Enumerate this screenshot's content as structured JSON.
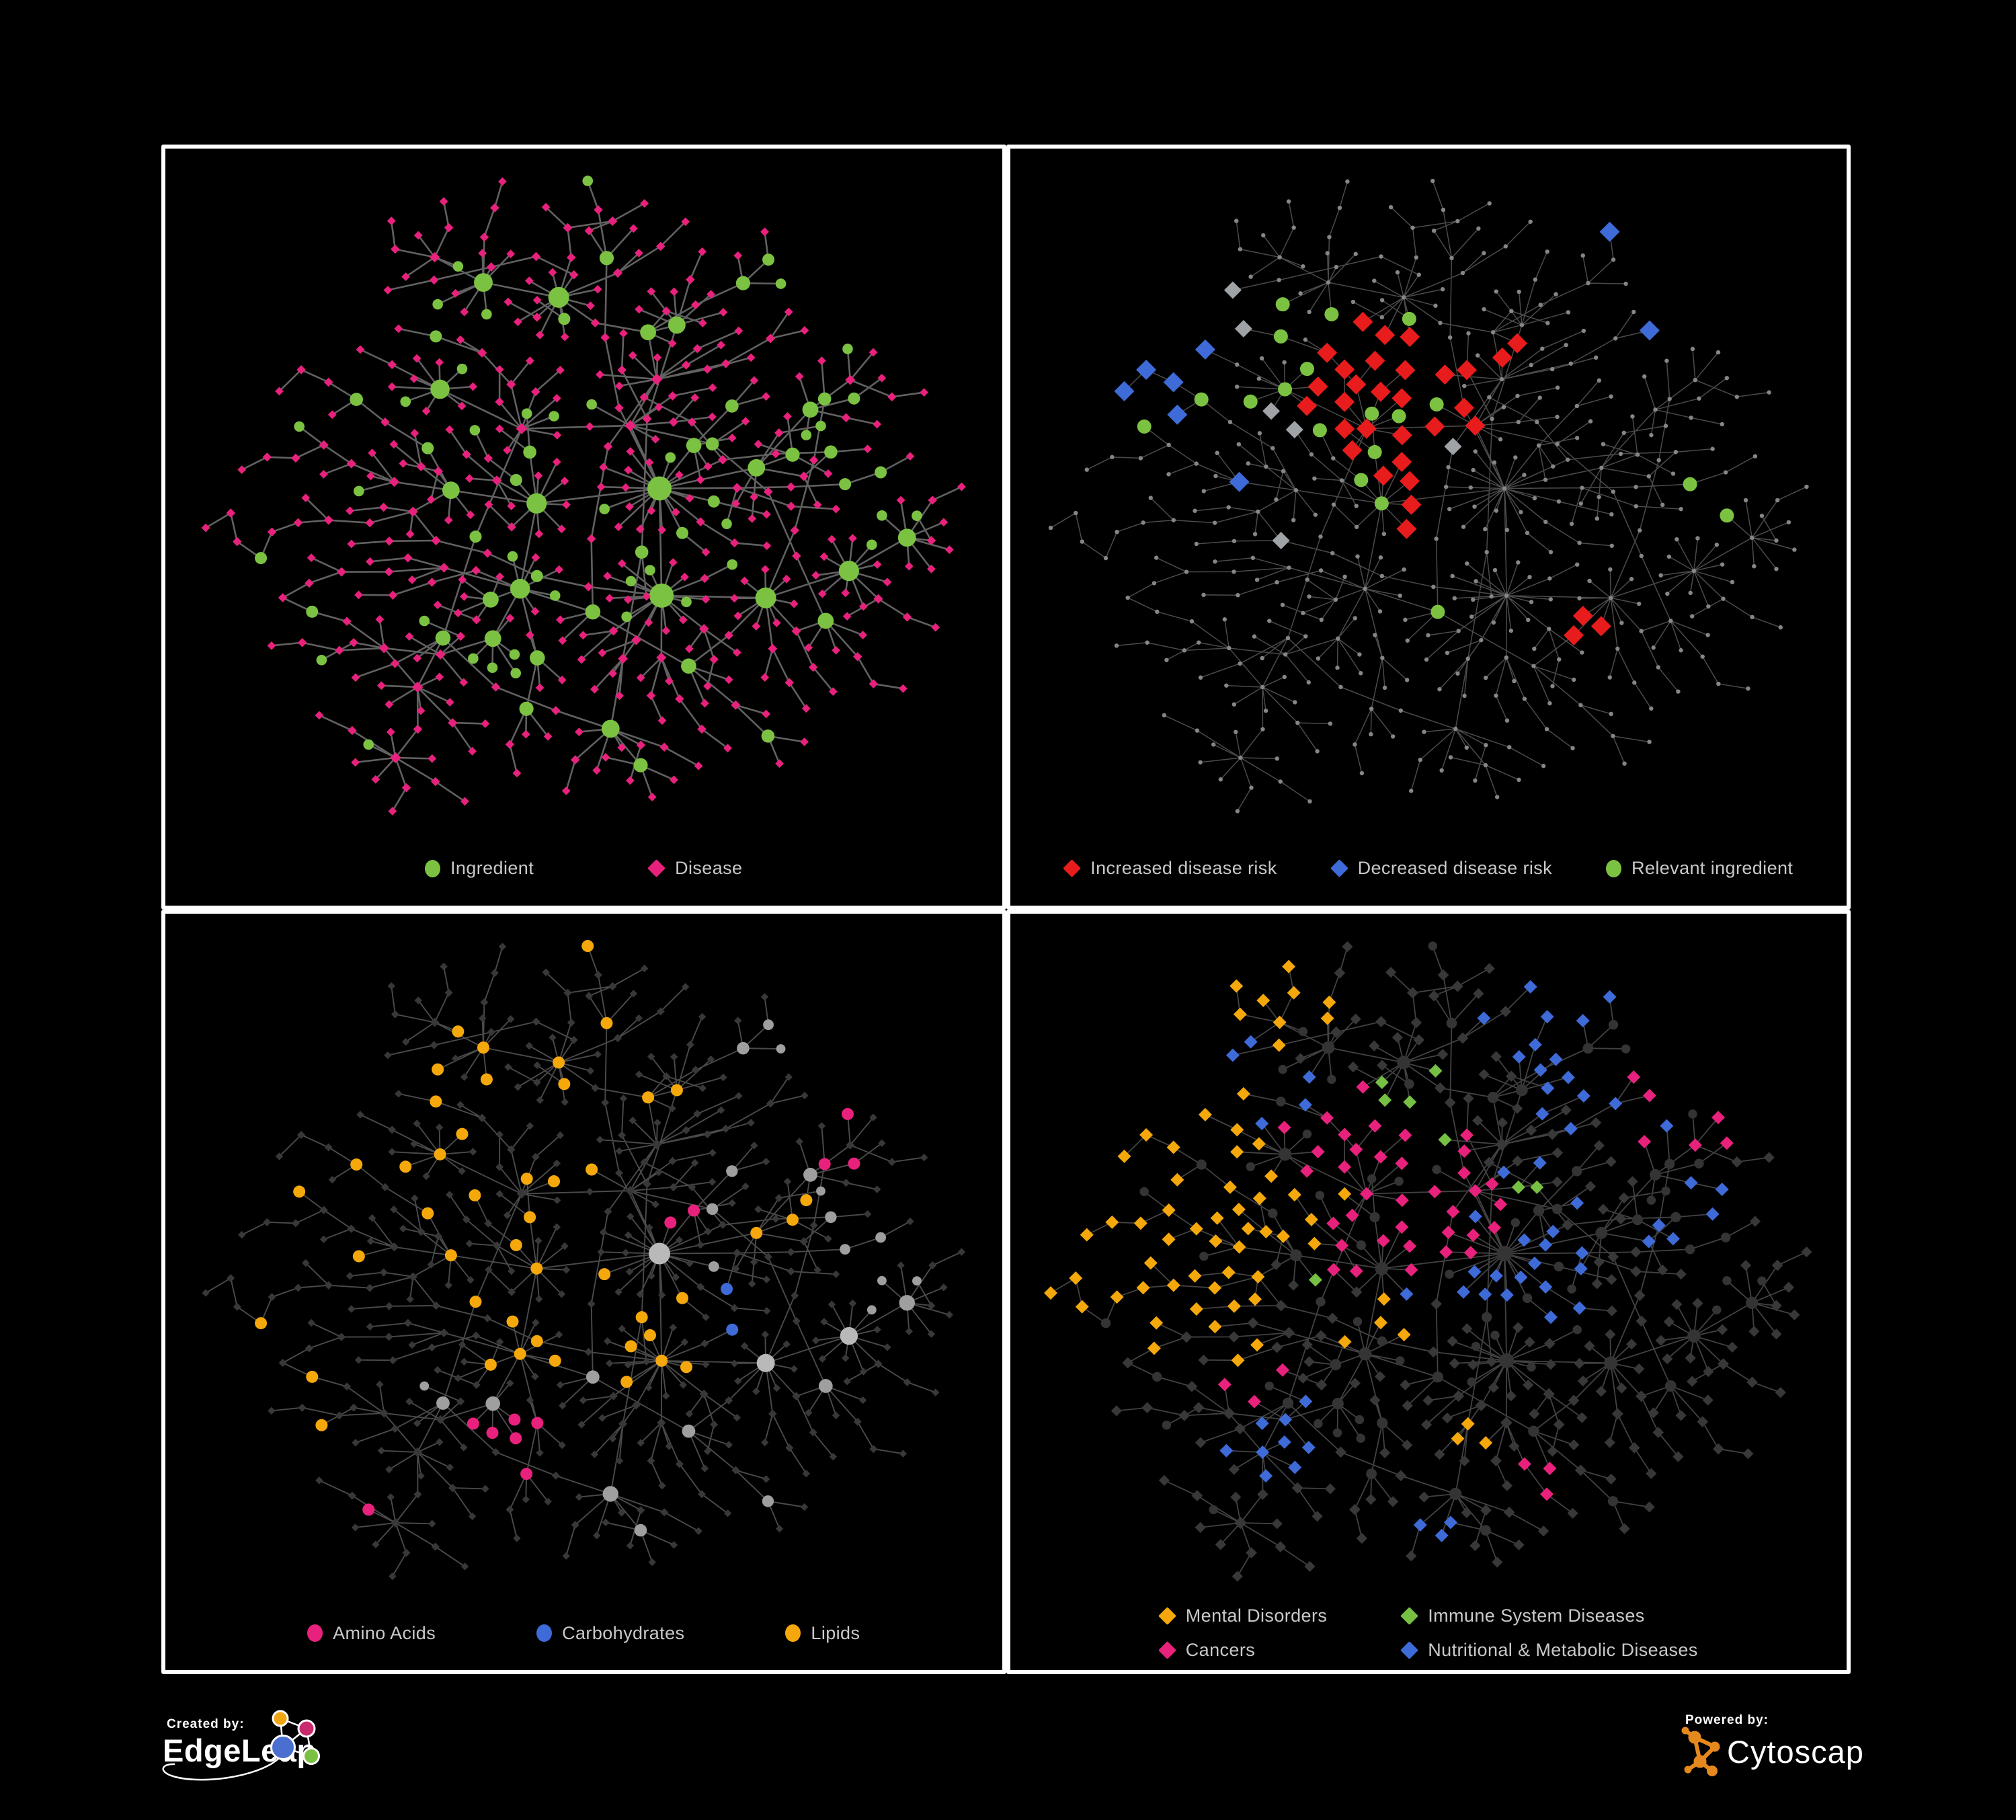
{
  "page": {
    "background": "#000000",
    "panel_border": "#ffffff",
    "legend_text_color": "#c9c9c9"
  },
  "palette": {
    "green": "#7cc242",
    "pink": "#e8217d",
    "red": "#e81c1c",
    "blue": "#3e6bd8",
    "orange": "#f5a80c",
    "silver": "#9fa2a6",
    "lime": "#76c043",
    "gray_node": "#9f9f9f",
    "gray_hub": "#b9b9b9",
    "dark_diamond": "#383838",
    "dark_circle": "#343434",
    "dot_node": "#868686",
    "edgeleap_orange": "#f1a512",
    "edgeleap_pink": "#c92a6d",
    "edgeleap_blue": "#4a6fd0",
    "edgeleap_green": "#7ac143",
    "cytoscape_orange": "#e5891e",
    "footer_text": "#ffffff"
  },
  "graph": {
    "seed": 1337,
    "nodes": 470,
    "chain_prob": 0.32,
    "extra_links": 13,
    "iterations": 120
  },
  "panels": [
    {
      "name": "ingredient-disease-network",
      "base_mode": "categorical",
      "style": {
        "edge_color": "#6b6b6b",
        "edge_width": 2.6,
        "edge_opacity": 0.9
      },
      "legend_layout": "row",
      "legend_gap": 170,
      "legend": [
        {
          "label": "Ingredient",
          "shape": "circle",
          "color": "green"
        },
        {
          "label": "Disease",
          "shape": "diamond",
          "color": "pink"
        }
      ],
      "highlights": []
    },
    {
      "name": "disease-risk-network",
      "base_mode": "dots",
      "style": {
        "edge_color": "#585858",
        "edge_width": 1.5,
        "edge_opacity": 0.85
      },
      "legend_layout": "row",
      "legend_gap": 80,
      "legend": [
        {
          "label": "Increased disease risk",
          "shape": "diamond",
          "color": "red"
        },
        {
          "label": "Decreased disease risk",
          "shape": "diamond",
          "color": "blue"
        },
        {
          "label": "Relevant ingredient",
          "shape": "circle",
          "color": "green"
        }
      ],
      "highlights": [
        {
          "color": "red",
          "on": "d",
          "shape": "diamond",
          "size": 15,
          "picks": [
            [
              0.44,
              0.34,
              0.26,
              24
            ],
            [
              0.7,
              0.69,
              0.1,
              3
            ],
            [
              0.6,
              0.27,
              0.08,
              2
            ],
            [
              0.48,
              0.52,
              0.1,
              3
            ]
          ]
        },
        {
          "color": "blue",
          "on": "d",
          "shape": "diamond",
          "size": 15,
          "picks": [
            [
              0.14,
              0.3,
              0.13,
              5
            ],
            [
              0.86,
              0.08,
              0.1,
              2
            ],
            [
              0.24,
              0.47,
              0.06,
              1
            ]
          ]
        },
        {
          "color": "silver",
          "on": "d",
          "shape": "diamond",
          "size": 13,
          "picks": [
            [
              0.12,
              0.2,
              0.08,
              2
            ],
            [
              0.37,
              0.37,
              0.11,
              2
            ],
            [
              0.3,
              0.58,
              0.07,
              1
            ],
            [
              0.52,
              0.4,
              0.07,
              1
            ]
          ]
        },
        {
          "color": "green",
          "on": "i",
          "shape": "circle",
          "size": 10.5,
          "picks": [
            [
              0.42,
              0.34,
              0.3,
              15
            ],
            [
              0.06,
              0.33,
              0.07,
              2
            ],
            [
              0.86,
              0.52,
              0.09,
              2
            ],
            [
              0.55,
              0.75,
              0.09,
              1
            ]
          ]
        }
      ]
    },
    {
      "name": "nutrient-class-network",
      "base_mode": "grayscale",
      "style": {
        "edge_color": "#5c5c5c",
        "edge_width": 1.9,
        "edge_opacity": 0.8
      },
      "legend_layout": "row",
      "legend_gap": 150,
      "legend": [
        {
          "label": "Amino Acids",
          "shape": "circle",
          "color": "pink"
        },
        {
          "label": "Carbohydrates",
          "shape": "circle",
          "color": "blue"
        },
        {
          "label": "Lipids",
          "shape": "circle",
          "color": "orange"
        }
      ],
      "highlights": [
        {
          "color": "orange",
          "on": "i",
          "shape": "circle",
          "size": 9,
          "picks": [
            [
              0.3,
              0.22,
              0.2,
              34
            ],
            [
              0.43,
              0.54,
              0.1,
              9
            ],
            [
              0.6,
              0.62,
              0.12,
              4
            ],
            [
              0.76,
              0.45,
              0.2,
              3
            ],
            [
              0.18,
              0.62,
              0.15,
              3
            ],
            [
              0.5,
              0.05,
              0.08,
              2
            ]
          ]
        },
        {
          "color": "pink",
          "on": "i",
          "shape": "circle",
          "size": 9,
          "picks": [
            [
              0.08,
              0.45,
              0.12,
              3
            ],
            [
              0.45,
              0.8,
              0.22,
              5
            ],
            [
              0.88,
              0.3,
              0.12,
              3
            ],
            [
              0.55,
              0.35,
              0.1,
              2
            ],
            [
              0.3,
              0.9,
              0.1,
              2
            ],
            [
              0.03,
              0.18,
              0.06,
              1
            ]
          ]
        },
        {
          "color": "blue",
          "on": "i",
          "shape": "circle",
          "size": 9,
          "picks": [
            [
              0.27,
              0.2,
              0.13,
              7
            ],
            [
              0.62,
              0.6,
              0.09,
              2
            ],
            [
              0.05,
              0.3,
              0.06,
              1
            ]
          ]
        }
      ]
    },
    {
      "name": "disease-class-network",
      "base_mode": "dark",
      "style": {
        "edge_color": "#4e4e4e",
        "edge_width": 1.8,
        "edge_opacity": 0.85
      },
      "legend_layout": "grid",
      "legend_gap": 110,
      "legend": [
        {
          "label": "Mental Disorders",
          "shape": "diamond",
          "color": "orange"
        },
        {
          "label": "Cancers",
          "shape": "diamond",
          "color": "pink"
        },
        {
          "label": "Immune System Diseases",
          "shape": "diamond",
          "color": "lime"
        },
        {
          "label": "Nutritional & Metabolic Diseases",
          "shape": "diamond",
          "color": "blue"
        }
      ],
      "highlights": [
        {
          "color": "orange",
          "on": "d",
          "shape": "diamond",
          "size": 10,
          "picks": [
            [
              0.15,
              0.43,
              0.17,
              48
            ],
            [
              0.3,
              0.1,
              0.14,
              9
            ],
            [
              0.55,
              0.78,
              0.09,
              3
            ],
            [
              0.45,
              0.6,
              0.3,
              4
            ]
          ]
        },
        {
          "color": "pink",
          "on": "d",
          "shape": "diamond",
          "size": 10,
          "picks": [
            [
              0.43,
              0.4,
              0.15,
              36
            ],
            [
              0.9,
              0.22,
              0.09,
              6
            ],
            [
              0.65,
              0.85,
              0.1,
              3
            ],
            [
              0.25,
              0.68,
              0.18,
              3
            ]
          ]
        },
        {
          "color": "blue",
          "on": "d",
          "shape": "diamond",
          "size": 10,
          "picks": [
            [
              0.6,
              0.5,
              0.12,
              20
            ],
            [
              0.73,
              0.14,
              0.18,
              16
            ],
            [
              0.3,
              0.8,
              0.22,
              9
            ],
            [
              0.85,
              0.42,
              0.1,
              6
            ],
            [
              0.1,
              0.2,
              0.15,
              5
            ],
            [
              0.5,
              0.93,
              0.1,
              3
            ]
          ]
        },
        {
          "color": "lime",
          "on": "d",
          "shape": "diamond",
          "size": 10,
          "picks": [
            [
              0.44,
              0.33,
              0.2,
              5
            ],
            [
              0.6,
              0.45,
              0.1,
              2
            ],
            [
              0.35,
              0.55,
              0.1,
              1
            ]
          ]
        }
      ]
    }
  ],
  "footer": {
    "created_by": "Created by:",
    "left_brand": "EdgeLeap",
    "powered_by": "Powered by:",
    "right_brand": "Cytoscape"
  }
}
